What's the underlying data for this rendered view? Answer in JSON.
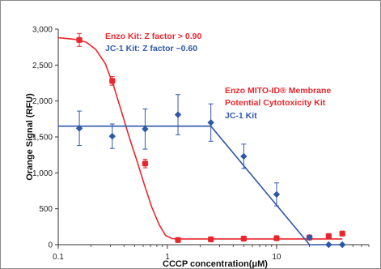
{
  "colors": {
    "enzo": "#e8262d",
    "jc1": "#2e58a8",
    "axis": "#333333"
  },
  "chart_data": {
    "type": "scatter",
    "xlabel": "CCCP concentration(μM)",
    "ylabel": "Orange Signal (RFU)",
    "xscale": "log",
    "xlim": [
      0.1,
      70
    ],
    "ylim": [
      0,
      3000
    ],
    "xticks": [
      {
        "value": 0.1,
        "label": "0.1"
      },
      {
        "value": 1,
        "label": "1"
      },
      {
        "value": 10,
        "label": "10"
      }
    ],
    "yticks": [
      {
        "value": 0,
        "label": "0"
      },
      {
        "value": 500,
        "label": "500"
      },
      {
        "value": 1000,
        "label": "1,000"
      },
      {
        "value": 1500,
        "label": "1,500"
      },
      {
        "value": 2000,
        "label": "2,000"
      },
      {
        "value": 2500,
        "label": "2,500"
      },
      {
        "value": 3000,
        "label": "3,000"
      }
    ],
    "annotations": [
      {
        "text": "Enzo Kit: Z factor > 0.90",
        "series": "enzo"
      },
      {
        "text": "JC-1 Kit:  Z factor  ~0.60",
        "series": "jc1"
      }
    ],
    "legend_labels": [
      {
        "text": "Enzo MITO-ID® Membrane",
        "series": "enzo"
      },
      {
        "text": "Potential Cytotoxicity Kit",
        "series": "enzo"
      },
      {
        "text": "JC-1 Kit",
        "series": "jc1"
      }
    ],
    "series": [
      {
        "id": "enzo",
        "marker": "square",
        "points": [
          {
            "x": 0.156,
            "y": 2850,
            "err": 90
          },
          {
            "x": 0.3125,
            "y": 2280,
            "err": 60
          },
          {
            "x": 0.625,
            "y": 1130,
            "err": 60
          },
          {
            "x": 1.25,
            "y": 65,
            "err": 10
          },
          {
            "x": 2.5,
            "y": 75,
            "err": 10
          },
          {
            "x": 5,
            "y": 85,
            "err": 10
          },
          {
            "x": 10,
            "y": 90,
            "err": 10
          },
          {
            "x": 20,
            "y": 100,
            "err": 15
          },
          {
            "x": 30,
            "y": 120,
            "err": 15
          },
          {
            "x": 40,
            "y": 155,
            "err": 20
          }
        ],
        "fit": [
          {
            "x": 0.1,
            "y": 2880
          },
          {
            "x": 0.14,
            "y": 2860
          },
          {
            "x": 0.18,
            "y": 2820
          },
          {
            "x": 0.22,
            "y": 2720
          },
          {
            "x": 0.27,
            "y": 2520
          },
          {
            "x": 0.32,
            "y": 2220
          },
          {
            "x": 0.38,
            "y": 1850
          },
          {
            "x": 0.45,
            "y": 1480
          },
          {
            "x": 0.53,
            "y": 1150
          },
          {
            "x": 0.62,
            "y": 820
          },
          {
            "x": 0.72,
            "y": 520
          },
          {
            "x": 0.84,
            "y": 280
          },
          {
            "x": 0.96,
            "y": 130
          },
          {
            "x": 1.1,
            "y": 85
          },
          {
            "x": 1.25,
            "y": 80
          },
          {
            "x": 40,
            "y": 80
          }
        ]
      },
      {
        "id": "jc1",
        "marker": "diamond",
        "points": [
          {
            "x": 0.156,
            "y": 1620,
            "err": 240
          },
          {
            "x": 0.3125,
            "y": 1510,
            "err": 170
          },
          {
            "x": 0.625,
            "y": 1610,
            "err": 280
          },
          {
            "x": 1.25,
            "y": 1810,
            "err": 280
          },
          {
            "x": 2.5,
            "y": 1700,
            "err": 260
          },
          {
            "x": 5,
            "y": 1230,
            "err": 170
          },
          {
            "x": 10,
            "y": 700,
            "err": 160
          },
          {
            "x": 20,
            "y": 100,
            "err": 15
          },
          {
            "x": 30,
            "y": 0,
            "err": 0
          },
          {
            "x": 40,
            "y": 0,
            "err": 0
          }
        ],
        "fit": [
          {
            "x": 0.1,
            "y": 1650
          },
          {
            "x": 2.5,
            "y": 1650
          },
          {
            "x": 20,
            "y": 0
          },
          {
            "x": 40,
            "y": 0
          }
        ]
      }
    ]
  }
}
